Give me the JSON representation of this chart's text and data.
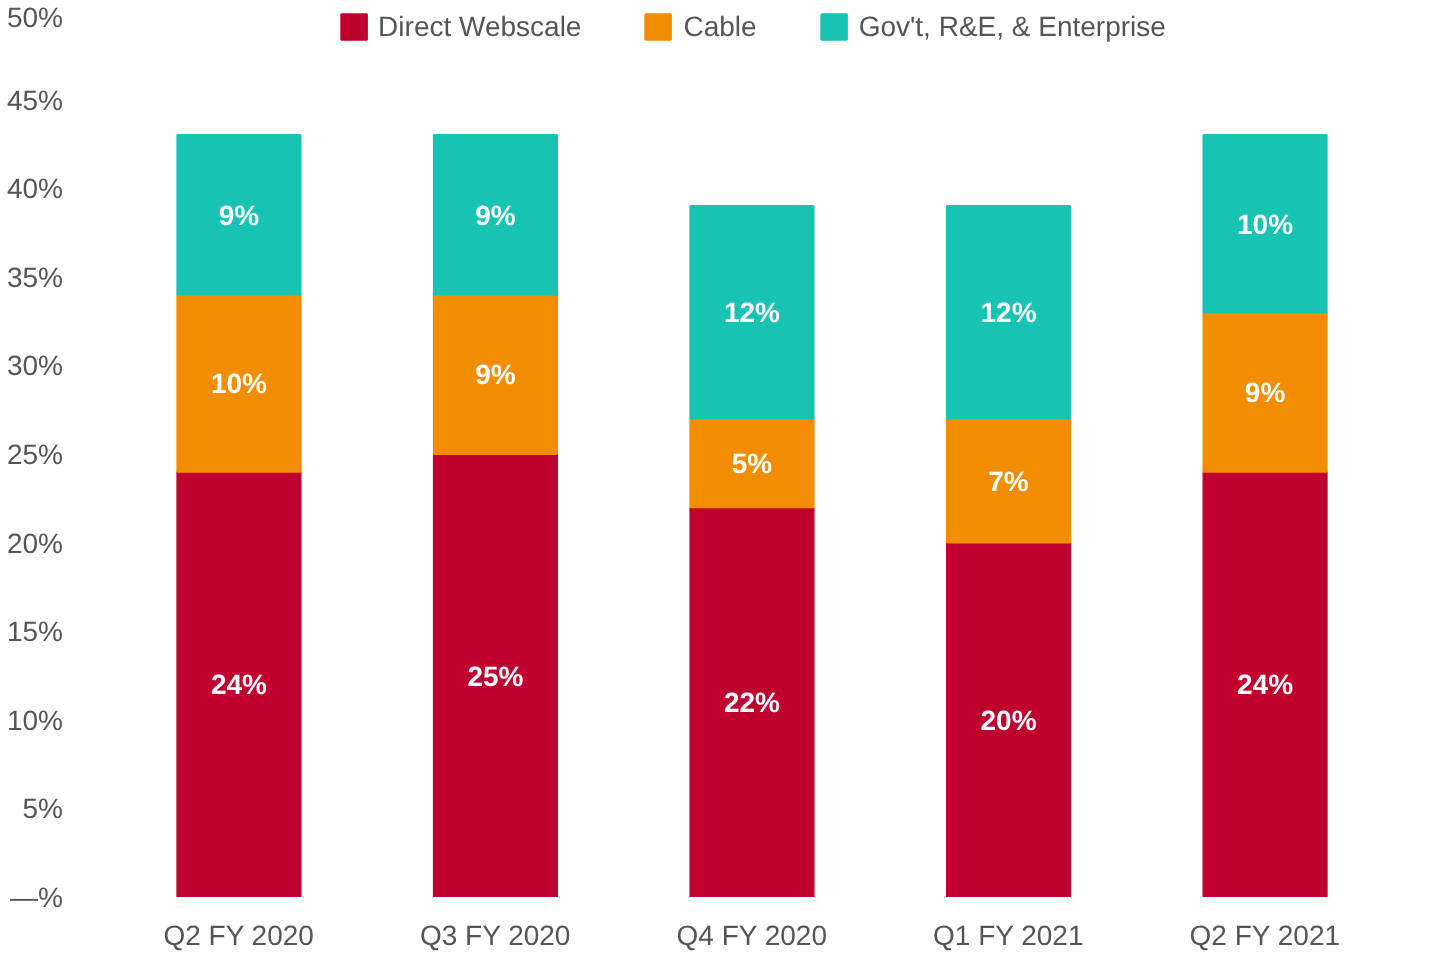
{
  "chart_data": {
    "type": "bar",
    "stacked": true,
    "legend": "top",
    "grid": false,
    "categories": [
      "Q2 FY 2020",
      "Q3 FY 2020",
      "Q4 FY 2020",
      "Q1 FY 2021",
      "Q2 FY 2021"
    ],
    "series": [
      {
        "name": "Direct Webscale",
        "color": "#c0002f",
        "values": [
          24,
          25,
          22,
          20,
          24
        ],
        "value_labels": [
          "24%",
          "25%",
          "22%",
          "20%",
          "24%"
        ]
      },
      {
        "name": "Cable",
        "color": "#f28c00",
        "values": [
          10,
          9,
          5,
          7,
          9
        ],
        "value_labels": [
          "10%",
          "9%",
          "5%",
          "7%",
          "9%"
        ]
      },
      {
        "name": "Gov't, R&E, & Enterprise",
        "color": "#17c3b2",
        "values": [
          9,
          9,
          12,
          12,
          10
        ],
        "value_labels": [
          "9%",
          "9%",
          "12%",
          "12%",
          "10%"
        ]
      }
    ],
    "ylim": [
      0,
      50
    ],
    "yticks": [
      {
        "value": 0,
        "label": "—%"
      },
      {
        "value": 5,
        "label": "5%"
      },
      {
        "value": 10,
        "label": "10%"
      },
      {
        "value": 15,
        "label": "15%"
      },
      {
        "value": 20,
        "label": "20%"
      },
      {
        "value": 25,
        "label": "25%"
      },
      {
        "value": 30,
        "label": "30%"
      },
      {
        "value": 35,
        "label": "35%"
      },
      {
        "value": 40,
        "label": "40%"
      },
      {
        "value": 45,
        "label": "45%"
      },
      {
        "value": 50,
        "label": "50%"
      }
    ]
  }
}
